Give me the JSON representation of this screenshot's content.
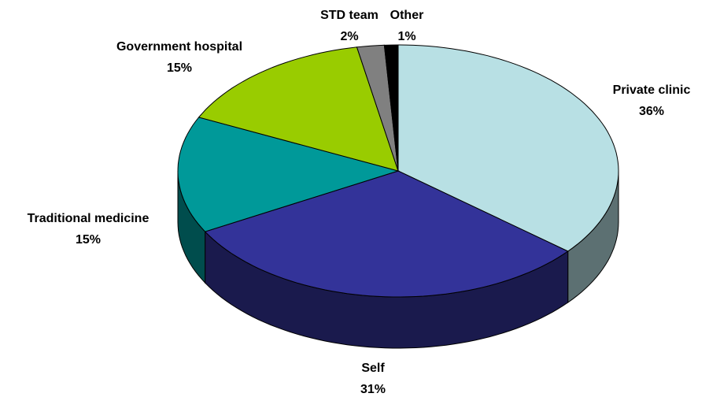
{
  "chart_data": {
    "type": "pie3d",
    "categories": [
      "Private clinic",
      "Self",
      "Traditional medicine",
      "Government hospital",
      "STD team",
      "Other"
    ],
    "values": [
      36,
      31,
      15,
      15,
      2,
      1
    ],
    "value_labels": [
      "36%",
      "31%",
      "15%",
      "15%",
      "2%",
      "1%"
    ],
    "colors": [
      "#b8e0e4",
      "#333399",
      "#009999",
      "#99cc00",
      "#808080",
      "#000000"
    ]
  }
}
